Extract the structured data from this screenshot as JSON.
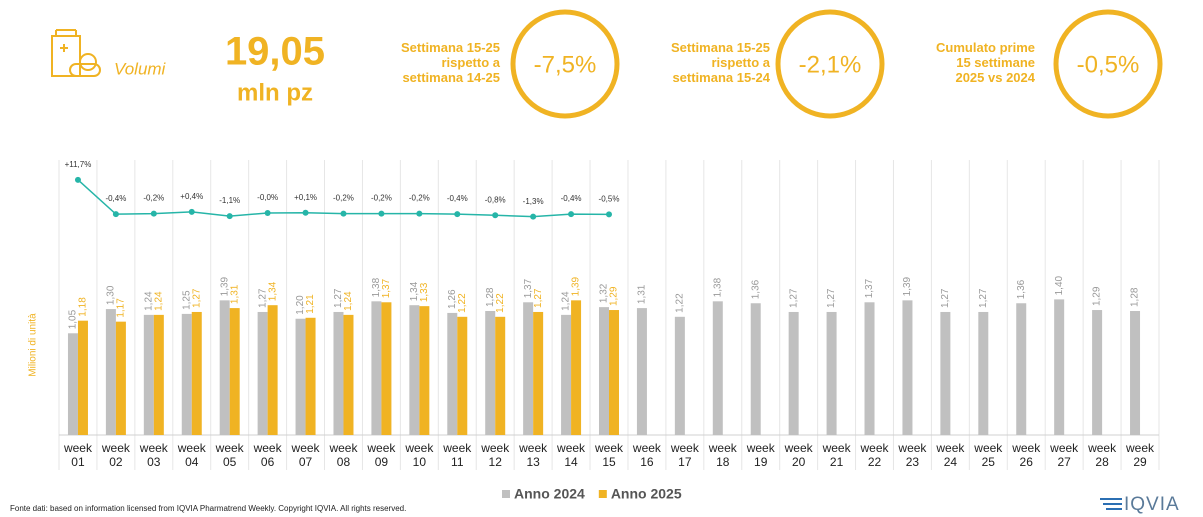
{
  "header": {
    "icon_label": "Volumi",
    "total": "19,05",
    "unit": "mln pz",
    "kpis": [
      {
        "lines": [
          "Settimana 15-25",
          "rispetto a",
          "settimana 14-25"
        ],
        "value": "-7,5%"
      },
      {
        "lines": [
          "Settimana 15-25",
          "rispetto a",
          "settimana 15-24"
        ],
        "value": "-2,1%"
      },
      {
        "lines": [
          "Cumulato prime",
          "15 settimane",
          "2025 vs 2024"
        ],
        "value": "-0,5%"
      }
    ]
  },
  "chart_data": {
    "type": "bar",
    "y_label": "Milioni di unità",
    "categories": [
      "week 01",
      "week 02",
      "week 03",
      "week 04",
      "week 05",
      "week 06",
      "week 07",
      "week 08",
      "week 09",
      "week 10",
      "week 11",
      "week 12",
      "week 13",
      "week 14",
      "week 15",
      "week 16",
      "week 17",
      "week 18",
      "week 19",
      "week 20",
      "week 21",
      "week 22",
      "week 23",
      "week 24",
      "week 25",
      "week 26",
      "week 27",
      "week 28",
      "week 29"
    ],
    "ylim": [
      0,
      3.2
    ],
    "y2lim": [
      -6,
      18
    ],
    "series": [
      {
        "name": "Anno 2024",
        "color": "#c0c0c0",
        "values": [
          1.05,
          1.3,
          1.24,
          1.25,
          1.39,
          1.27,
          1.2,
          1.27,
          1.38,
          1.34,
          1.26,
          1.28,
          1.37,
          1.24,
          1.32,
          1.31,
          1.22,
          1.38,
          1.36,
          1.27,
          1.27,
          1.37,
          1.39,
          1.27,
          1.27,
          1.36,
          1.4,
          1.29,
          1.28
        ],
        "value_labels": [
          "1,05",
          "1,30",
          "1,24",
          "1,25",
          "1,39",
          "1,27",
          "1,20",
          "1,27",
          "1,38",
          "1,34",
          "1,26",
          "1,28",
          "1,37",
          "1,24",
          "1,32",
          "1,31",
          "1,22",
          "1,38",
          "1,36",
          "1,27",
          "1,27",
          "1,37",
          "1,39",
          "1,27",
          "1,27",
          "1,36",
          "1,40",
          "1,29",
          "1,28"
        ]
      },
      {
        "name": "Anno 2025",
        "color": "#f0b323",
        "values": [
          1.18,
          1.17,
          1.24,
          1.27,
          1.31,
          1.34,
          1.21,
          1.24,
          1.37,
          1.33,
          1.22,
          1.22,
          1.27,
          1.39,
          1.29,
          null,
          null,
          null,
          null,
          null,
          null,
          null,
          null,
          null,
          null,
          null,
          null,
          null,
          null
        ],
        "value_labels": [
          "1,18",
          "1,17",
          "1,24",
          "1,27",
          "1,31",
          "1,34",
          "1,21",
          "1,24",
          "1,37",
          "1,33",
          "1,22",
          "1,22",
          "1,27",
          "1,39",
          "1,29",
          null,
          null,
          null,
          null,
          null,
          null,
          null,
          null,
          null,
          null,
          null,
          null,
          null,
          null
        ]
      },
      {
        "type": "line",
        "axis": "y2",
        "color": "#26b5a8",
        "values": [
          11.7,
          -0.4,
          -0.2,
          0.4,
          -1.1,
          -0.0,
          0.1,
          -0.2,
          -0.2,
          -0.2,
          -0.4,
          -0.8,
          -1.3,
          -0.4,
          -0.5,
          null,
          null,
          null,
          null,
          null,
          null,
          null,
          null,
          null,
          null,
          null,
          null,
          null,
          null
        ],
        "value_labels": [
          "+11,7%",
          "-0,4%",
          "-0,2%",
          "+0,4%",
          "-1,1%",
          "-0,0%",
          "+0,1%",
          "-0,2%",
          "-0,2%",
          "-0,2%",
          "-0,4%",
          "-0,8%",
          "-1,3%",
          "-0,4%",
          "-0,5%",
          null,
          null,
          null,
          null,
          null,
          null,
          null,
          null,
          null,
          null,
          null,
          null,
          null,
          null
        ]
      }
    ]
  },
  "footer": {
    "source": "Fonte dati: based on information licensed from IQVIA Pharmatrend Weekly. Copyright IQVIA. All rights reserved.",
    "logo": "IQVIA"
  }
}
